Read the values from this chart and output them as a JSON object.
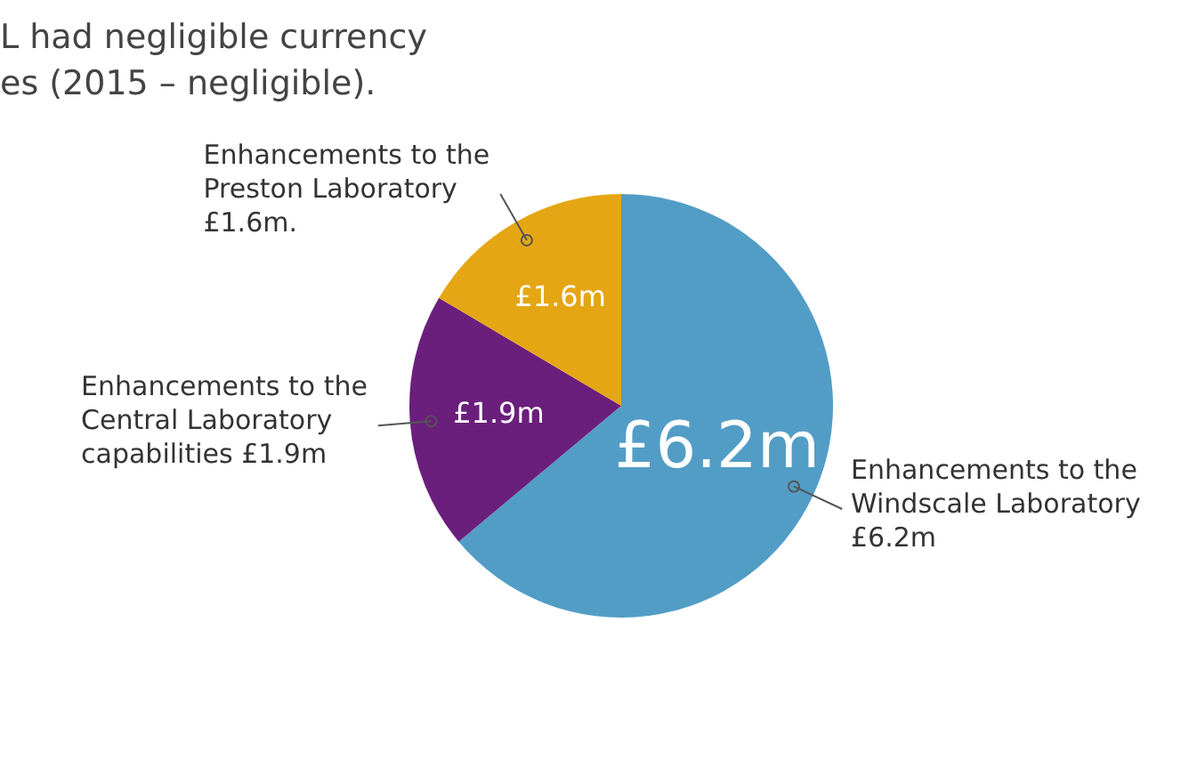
{
  "chart_data": {
    "type": "pie",
    "categories": [
      "Enhancements to the Windscale Laboratory £6.2m",
      "Enhancements to the Central Laboratory capabilities £1.9m",
      "Enhancements to the Preston Laboratory £1.6m."
    ],
    "values": [
      6.2,
      1.9,
      1.6
    ],
    "value_labels": [
      "£6.2m",
      "£1.9m",
      "£1.6m"
    ],
    "colors": [
      "#529dc6",
      "#6b1f7c",
      "#e5a614"
    ],
    "annotations": [
      "L had negligible currency",
      "es (2015 – negligible)."
    ],
    "legend": false
  }
}
